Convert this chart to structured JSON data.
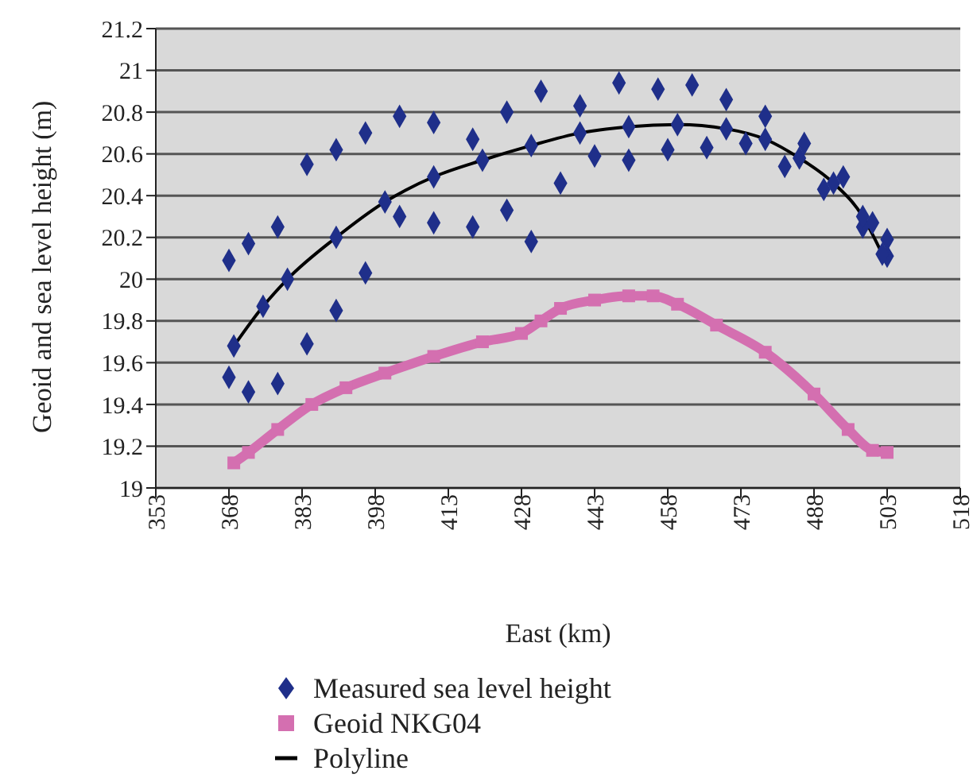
{
  "chart_data": {
    "type": "scatter",
    "xlabel": "East (km)",
    "ylabel": "Geoid and sea level height (m)",
    "xlim": [
      353,
      518
    ],
    "xticks": [
      353,
      368,
      383,
      398,
      413,
      428,
      443,
      458,
      473,
      488,
      503,
      518
    ],
    "ylim": [
      19,
      21.2
    ],
    "yticks": [
      19,
      19.2,
      19.4,
      19.6,
      19.8,
      20,
      20.2,
      20.4,
      20.6,
      20.8,
      21,
      21.2
    ],
    "grid": "y",
    "legend": "bottom",
    "marker": "diamond",
    "series": [
      {
        "name": "Measured sea level height",
        "color": "#1f2f8a",
        "x": [
          368,
          372,
          378,
          384,
          390,
          396,
          403,
          410,
          418,
          425,
          432,
          440,
          448,
          456,
          463,
          470,
          478,
          486,
          494,
          500,
          503,
          368,
          372,
          378,
          384,
          390,
          396,
          403,
          410,
          418,
          425,
          430,
          436,
          443,
          450,
          458,
          466,
          474,
          482,
          490,
          498,
          503,
          369,
          375,
          380,
          390,
          400,
          410,
          420,
          430,
          440,
          450,
          460,
          470,
          478,
          485,
          492,
          498,
          502
        ],
        "values": [
          20.09,
          20.17,
          20.25,
          20.55,
          20.62,
          20.7,
          20.78,
          20.75,
          20.67,
          20.8,
          20.9,
          20.83,
          20.94,
          20.91,
          20.93,
          20.86,
          20.78,
          20.65,
          20.49,
          20.27,
          20.19,
          19.53,
          19.46,
          19.5,
          19.69,
          19.85,
          20.03,
          20.3,
          20.27,
          20.25,
          20.33,
          20.18,
          20.46,
          20.59,
          20.57,
          20.62,
          20.63,
          20.65,
          20.54,
          20.43,
          20.25,
          20.11,
          19.68,
          19.87,
          20,
          20.2,
          20.37,
          20.49,
          20.57,
          20.64,
          20.7,
          20.73,
          20.74,
          20.72,
          20.67,
          20.58,
          20.46,
          20.3,
          20.12
        ]
      },
      {
        "name": "Geoid NKG04",
        "type": "line",
        "marker": "square",
        "color": "#d46fb0",
        "x": [
          369,
          372,
          378,
          385,
          392,
          400,
          410,
          420,
          428,
          432,
          436,
          443,
          450,
          455,
          460,
          468,
          478,
          488,
          495,
          500,
          503
        ],
        "values": [
          19.12,
          19.17,
          19.28,
          19.4,
          19.48,
          19.55,
          19.63,
          19.7,
          19.74,
          19.8,
          19.86,
          19.9,
          19.92,
          19.92,
          19.88,
          19.78,
          19.65,
          19.45,
          19.28,
          19.18,
          19.17
        ]
      },
      {
        "name": "Polyline",
        "type": "line",
        "marker": "none",
        "color": "#000000",
        "x": [
          369,
          375,
          380,
          390,
          400,
          410,
          420,
          430,
          440,
          450,
          460,
          470,
          478,
          485,
          492,
          498,
          502
        ],
        "values": [
          19.68,
          19.87,
          20,
          20.2,
          20.37,
          20.49,
          20.57,
          20.64,
          20.7,
          20.73,
          20.74,
          20.72,
          20.67,
          20.58,
          20.46,
          20.3,
          20.12
        ]
      }
    ]
  }
}
